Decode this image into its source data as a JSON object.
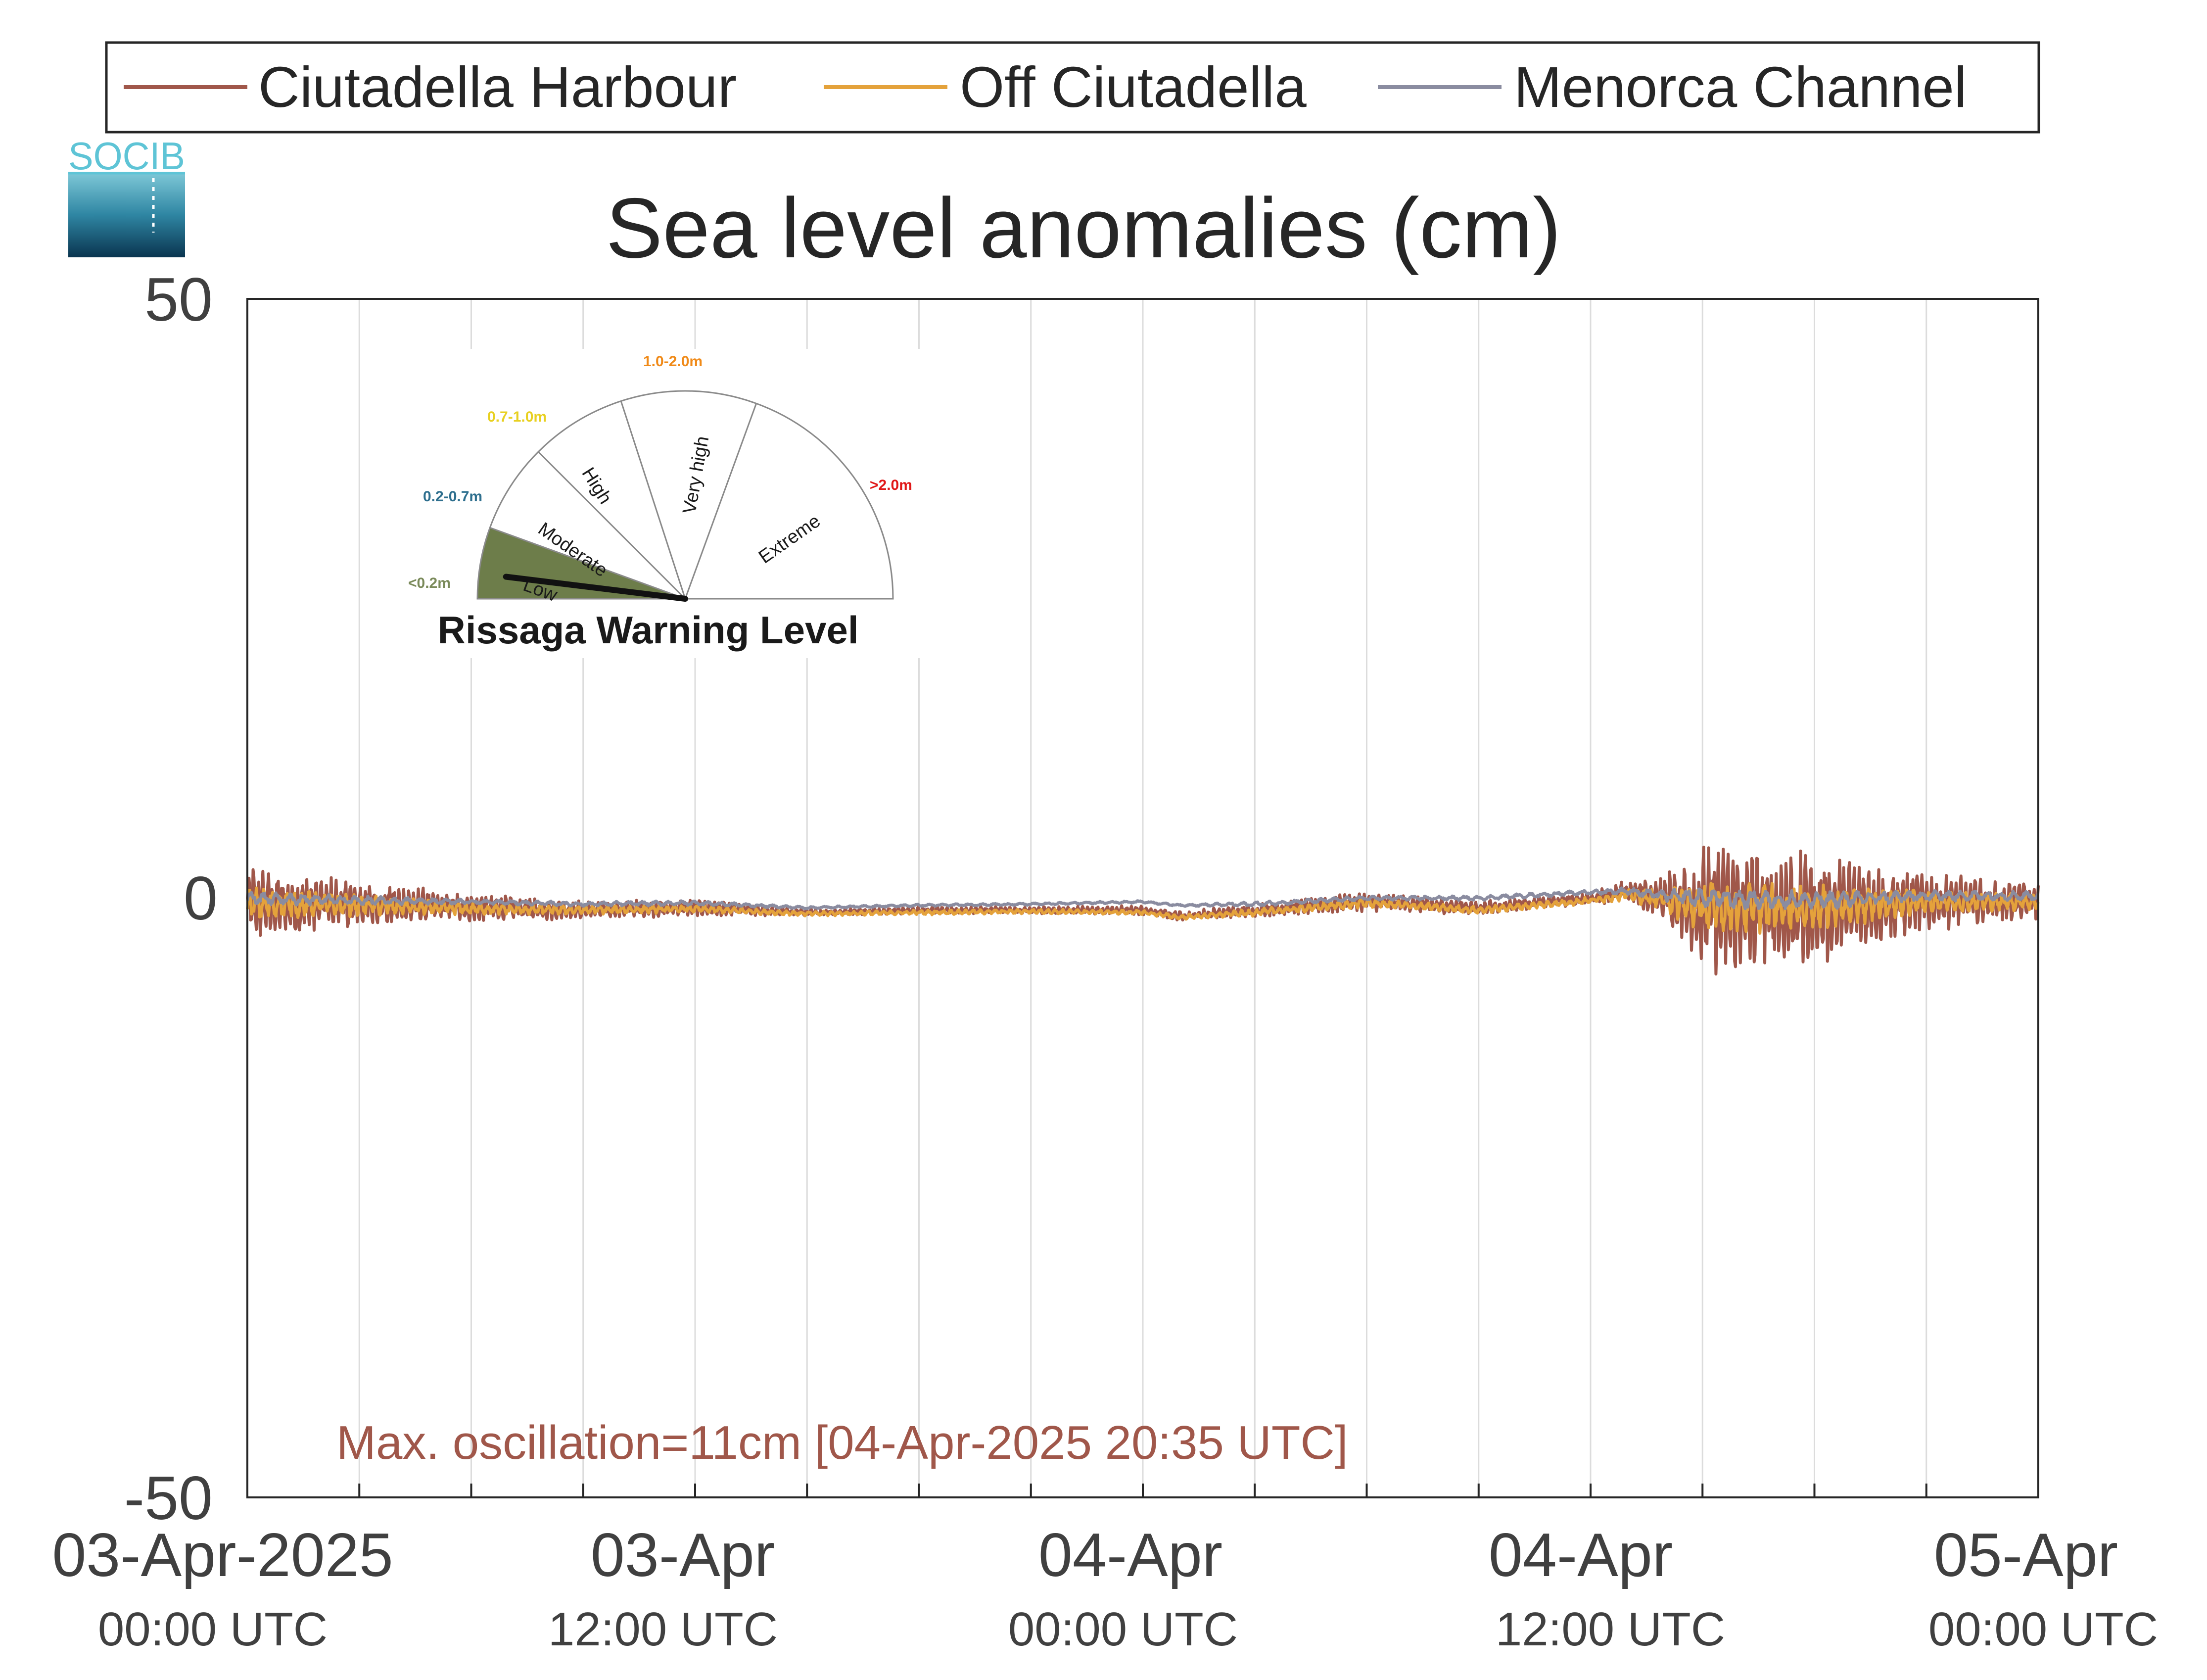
{
  "chart_data": {
    "type": "line",
    "title": "Sea level anomalies (cm)",
    "ylim": [
      -50,
      50
    ],
    "yticks": [
      "50",
      "0",
      "-50"
    ],
    "xlim_hours": [
      0,
      48
    ],
    "xticks": [
      {
        "date": "03-Apr-2025",
        "time": "00:00 UTC"
      },
      {
        "date": "03-Apr",
        "time": "12:00 UTC"
      },
      {
        "date": "04-Apr",
        "time": "00:00 UTC"
      },
      {
        "date": "04-Apr",
        "time": "12:00 UTC"
      },
      {
        "date": "05-Apr",
        "time": "00:00 UTC"
      }
    ],
    "grid_interval_hours": 3,
    "legend_position": "top (outside plot)",
    "series": [
      {
        "name": "Ciutadella Harbour",
        "color": "#a0574a",
        "baseline_t": [
          0,
          3,
          6,
          9,
          12,
          15,
          18,
          21,
          24,
          25,
          27,
          30,
          33,
          36,
          37,
          38,
          39,
          42,
          45,
          48
        ],
        "baseline_v": [
          -0.5,
          -0.5,
          -0.8,
          -1.0,
          -0.8,
          -1.2,
          -1.0,
          -1.0,
          -1.0,
          -1.5,
          -1.0,
          -0.3,
          -0.8,
          0.0,
          0.6,
          0.0,
          -1.0,
          -1.0,
          -0.3,
          -0.3
        ],
        "oscillation_amplitude_cm": [
          3.5,
          2.0,
          1.2,
          0.8,
          0.7,
          0.3,
          0.3,
          0.3,
          0.4,
          0.4,
          0.6,
          0.8,
          0.6,
          0.5,
          1.0,
          2.0,
          5.5,
          5.0,
          2.5,
          1.5
        ]
      },
      {
        "name": "Off Ciutadella",
        "color": "#e4a23b",
        "baseline_t": [
          0,
          3,
          6,
          9,
          12,
          15,
          18,
          21,
          24,
          25,
          27,
          30,
          33,
          36,
          37,
          38,
          39,
          42,
          45,
          48
        ],
        "baseline_v": [
          -0.5,
          -0.6,
          -0.9,
          -1.0,
          -0.9,
          -1.3,
          -1.2,
          -1.1,
          -1.2,
          -1.6,
          -1.2,
          -0.4,
          -1.0,
          -0.2,
          0.3,
          -0.2,
          -0.8,
          -0.8,
          -0.3,
          -0.3
        ],
        "oscillation_amplitude_cm": [
          1.5,
          0.9,
          0.5,
          0.4,
          0.3,
          0.2,
          0.2,
          0.2,
          0.2,
          0.2,
          0.3,
          0.4,
          0.3,
          0.3,
          0.5,
          1.0,
          2.5,
          2.0,
          1.0,
          0.7
        ]
      },
      {
        "name": "Menorca Channel",
        "color": "#8a8ca0",
        "baseline_t": [
          0,
          3,
          6,
          9,
          12,
          15,
          18,
          21,
          24,
          25,
          27,
          30,
          33,
          36,
          37,
          38,
          39,
          42,
          45,
          48
        ],
        "baseline_v": [
          0.0,
          -0.2,
          -0.3,
          -0.5,
          -0.4,
          -0.8,
          -0.6,
          -0.5,
          -0.3,
          -0.6,
          -0.5,
          0.0,
          0.0,
          0.5,
          0.6,
          0.2,
          0.0,
          -0.2,
          0.2,
          0.2
        ],
        "oscillation_amplitude_cm": [
          0.6,
          0.4,
          0.2,
          0.2,
          0.2,
          0.1,
          0.1,
          0.1,
          0.1,
          0.1,
          0.2,
          0.2,
          0.2,
          0.2,
          0.3,
          0.5,
          0.9,
          0.8,
          0.5,
          0.4
        ]
      }
    ],
    "annotation": "Max. oscillation=11cm [04-Apr-2025 20:35 UTC]"
  },
  "logo": {
    "text": "SOCIB"
  },
  "gauge": {
    "title": "Rissaga Warning Level",
    "current_level": "Low",
    "segments": [
      {
        "label": "Low",
        "range": "<0.2m",
        "color": "#7a8a5a"
      },
      {
        "label": "Moderate",
        "range": "0.2-0.7m",
        "color": "#2e6f8e"
      },
      {
        "label": "High",
        "range": "0.7-1.0m",
        "color": "#e8d020"
      },
      {
        "label": "Very high",
        "range": "1.0-2.0m",
        "color": "#f08a18"
      },
      {
        "label": "Extreme",
        "range": ">2.0m",
        "color": "#e01818"
      }
    ],
    "active_fill": "#6d7d4a"
  }
}
